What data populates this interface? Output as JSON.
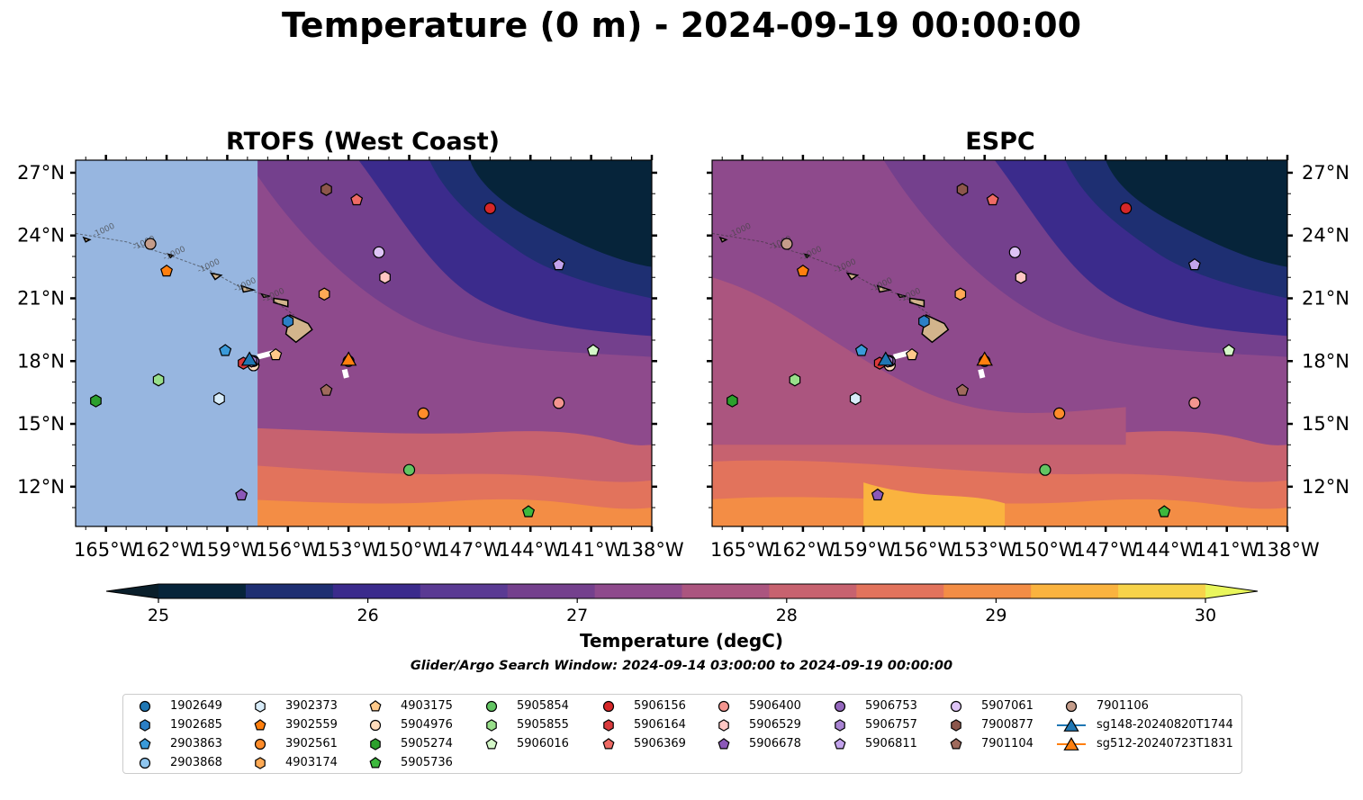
{
  "title": "Temperature (0 m) - 2024-09-19 00:00:00",
  "panels": [
    {
      "title": "RTOFS (West Coast)",
      "model": "rtofs"
    },
    {
      "title": "ESPC",
      "model": "espc"
    }
  ],
  "map": {
    "lat_ticks": [
      "27°N",
      "24°N",
      "21°N",
      "18°N",
      "15°N",
      "12°N"
    ],
    "lon_ticks": [
      "165°W",
      "162°W",
      "159°W",
      "156°W",
      "153°W",
      "150°W",
      "147°W",
      "144°W",
      "141°W",
      "138°W"
    ],
    "extent": {
      "lon_min": -166.5,
      "lon_max": -138,
      "lat_min": 10.1,
      "lat_max": 27.6
    },
    "rtofs_masked_west_of_lon": -157.5,
    "land_color": "#d2b48c",
    "mask_color": "#97b6e0",
    "contour_labels": [
      "-1000",
      "-1000",
      "-1000",
      "-1000",
      "-1000",
      "-1000"
    ]
  },
  "colorbar": {
    "label": "Temperature (degC)",
    "ticks": [
      "25",
      "26",
      "27",
      "28",
      "29",
      "30"
    ],
    "colors": [
      "#06243a",
      "#1e2f72",
      "#3b2b8c",
      "#5a3a93",
      "#74408d",
      "#8e4a8c",
      "#ab557f",
      "#c7626f",
      "#e2735c",
      "#f38d45",
      "#fab33f",
      "#f7d34a"
    ],
    "under_color": "#0a1f2b",
    "over_color": "#e9f65c",
    "min": 25,
    "max": 30
  },
  "search_window": "Glider/Argo Search Window: 2024-09-14 03:00:00 to 2024-09-19 00:00:00",
  "legend": [
    {
      "label": "1902649",
      "color": "#1f77b4",
      "marker": "circle",
      "col": 0,
      "row": 0
    },
    {
      "label": "1902685",
      "color": "#2b7fc6",
      "marker": "hexagon",
      "col": 0,
      "row": 1
    },
    {
      "label": "2903863",
      "color": "#3a9ad9",
      "marker": "pentagon",
      "col": 0,
      "row": 2
    },
    {
      "label": "2903868",
      "color": "#8fc6ef",
      "marker": "circle",
      "col": 0,
      "row": 3
    },
    {
      "label": "3902373",
      "color": "#d8ecf9",
      "marker": "hexagon",
      "col": 1,
      "row": 0
    },
    {
      "label": "3902559",
      "color": "#ff7f0e",
      "marker": "pentagon",
      "col": 1,
      "row": 1
    },
    {
      "label": "3902561",
      "color": "#ff8c2a",
      "marker": "circle",
      "col": 1,
      "row": 2
    },
    {
      "label": "4903174",
      "color": "#ffaa55",
      "marker": "hexagon",
      "col": 1,
      "row": 3
    },
    {
      "label": "4903175",
      "color": "#ffc98a",
      "marker": "pentagon",
      "col": 2,
      "row": 0
    },
    {
      "label": "5904976",
      "color": "#ffdcbc",
      "marker": "circle",
      "col": 2,
      "row": 1
    },
    {
      "label": "5905274",
      "color": "#2ca02c",
      "marker": "hexagon",
      "col": 2,
      "row": 2
    },
    {
      "label": "5905736",
      "color": "#3db83d",
      "marker": "pentagon",
      "col": 2,
      "row": 3
    },
    {
      "label": "5905854",
      "color": "#62c462",
      "marker": "circle",
      "col": 3,
      "row": 0
    },
    {
      "label": "5905855",
      "color": "#98df8a",
      "marker": "hexagon",
      "col": 3,
      "row": 1
    },
    {
      "label": "5906016",
      "color": "#d4f7c8",
      "marker": "pentagon",
      "col": 3,
      "row": 2
    },
    {
      "label": "5906156",
      "color": "#d62728",
      "marker": "circle",
      "col": 4,
      "row": 0
    },
    {
      "label": "5906164",
      "color": "#d93a3c",
      "marker": "hexagon",
      "col": 4,
      "row": 1
    },
    {
      "label": "5906369",
      "color": "#ee6a64",
      "marker": "pentagon",
      "col": 4,
      "row": 2
    },
    {
      "label": "5906400",
      "color": "#f4958f",
      "marker": "circle",
      "col": 5,
      "row": 0
    },
    {
      "label": "5906529",
      "color": "#ffc7c3",
      "marker": "hexagon",
      "col": 5,
      "row": 1
    },
    {
      "label": "5906678",
      "color": "#8b58b8",
      "marker": "pentagon",
      "col": 5,
      "row": 2
    },
    {
      "label": "5906753",
      "color": "#9467bd",
      "marker": "circle",
      "col": 6,
      "row": 0
    },
    {
      "label": "5906757",
      "color": "#a883d2",
      "marker": "hexagon",
      "col": 6,
      "row": 1
    },
    {
      "label": "5906811",
      "color": "#c3a3ec",
      "marker": "pentagon",
      "col": 6,
      "row": 2
    },
    {
      "label": "5907061",
      "color": "#dec4f6",
      "marker": "circle",
      "col": 7,
      "row": 0
    },
    {
      "label": "7900877",
      "color": "#8c564b",
      "marker": "hexagon",
      "col": 7,
      "row": 1
    },
    {
      "label": "7901104",
      "color": "#9f6a5c",
      "marker": "pentagon",
      "col": 7,
      "row": 2
    },
    {
      "label": "7901106",
      "color": "#c49c8a",
      "marker": "circle",
      "col": 8,
      "row": 0
    },
    {
      "label": "sg148-20240820T1744",
      "color": "#1f77b4",
      "marker": "triangle",
      "col": 8,
      "row": 1,
      "line": true
    },
    {
      "label": "sg512-20240723T1831",
      "color": "#ff7f0e",
      "marker": "triangle",
      "col": 8,
      "row": 2,
      "line": true
    }
  ],
  "observations": [
    {
      "id": "1902649",
      "lon": -153.0,
      "lat": 18.0
    },
    {
      "id": "1902685",
      "lon": -156.0,
      "lat": 19.9
    },
    {
      "id": "2903863",
      "lon": -159.1,
      "lat": 18.5
    },
    {
      "id": "2903868",
      "lon": -157.7,
      "lat": 17.8
    },
    {
      "id": "3902373",
      "lon": -159.4,
      "lat": 16.2
    },
    {
      "id": "3902559",
      "lon": -162.0,
      "lat": 22.3
    },
    {
      "id": "3902561",
      "lon": -149.3,
      "lat": 15.5
    },
    {
      "id": "4903174",
      "lon": -154.2,
      "lat": 21.2
    },
    {
      "id": "4903175",
      "lon": -156.6,
      "lat": 18.3
    },
    {
      "id": "5904976",
      "lon": -157.7,
      "lat": 17.8
    },
    {
      "id": "5905274",
      "lon": -165.5,
      "lat": 16.1
    },
    {
      "id": "5905736",
      "lon": -144.1,
      "lat": 10.8
    },
    {
      "id": "5905854",
      "lon": -150.0,
      "lat": 12.8
    },
    {
      "id": "5905855",
      "lon": -162.4,
      "lat": 17.1
    },
    {
      "id": "5906016",
      "lon": -140.9,
      "lat": 18.5
    },
    {
      "id": "5906156",
      "lon": -146.0,
      "lat": 25.3
    },
    {
      "id": "5906164",
      "lon": -158.2,
      "lat": 17.9
    },
    {
      "id": "5906369",
      "lon": -152.6,
      "lat": 25.7
    },
    {
      "id": "5906400",
      "lon": -142.6,
      "lat": 16.0
    },
    {
      "id": "5906529",
      "lon": -151.2,
      "lat": 22.0
    },
    {
      "id": "5906678",
      "lon": -158.3,
      "lat": 11.6
    },
    {
      "id": "5906753",
      "lon": -157.7,
      "lat": 18.0
    },
    {
      "id": "5906757",
      "lon": -157.8,
      "lat": 18.0
    },
    {
      "id": "5906811",
      "lon": -142.6,
      "lat": 22.6
    },
    {
      "id": "5907061",
      "lon": -151.5,
      "lat": 23.2
    },
    {
      "id": "7900877",
      "lon": -154.1,
      "lat": 26.2
    },
    {
      "id": "7901104",
      "lon": -154.1,
      "lat": 16.6
    },
    {
      "id": "7901106",
      "lon": -162.8,
      "lat": 23.6
    },
    {
      "id": "sg148-20240820T1744",
      "lon": -157.9,
      "lat": 18.1
    },
    {
      "id": "sg512-20240723T1831",
      "lon": -153.0,
      "lat": 18.1
    }
  ],
  "glider_tracks": [
    {
      "id": "sg148-20240820T1744",
      "points": [
        [
          -157.5,
          18.2
        ],
        [
          -156.7,
          18.4
        ]
      ]
    },
    {
      "id": "sg512-20240723T1831",
      "points": [
        [
          -153.2,
          17.6
        ],
        [
          -153.1,
          17.2
        ]
      ]
    }
  ]
}
